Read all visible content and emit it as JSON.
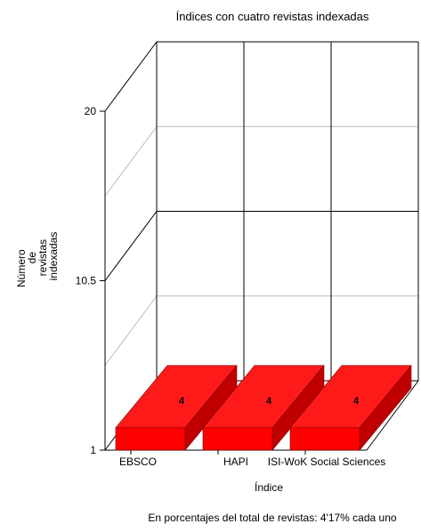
{
  "chart_data": {
    "type": "bar",
    "title": "Índices con cuatro revistas indexadas",
    "xlabel": "Índice",
    "ylabel_lines": [
      "Número",
      "de",
      "revistas",
      "indexadas"
    ],
    "categories": [
      "EBSCO",
      "HAPI",
      "ISI-WoK Social Sciences"
    ],
    "values": [
      4,
      4,
      4
    ],
    "y_ticks": [
      1,
      10.5,
      20
    ],
    "ylim": [
      1,
      20
    ],
    "style": "3d",
    "grid": true,
    "bar_color": "#ff0000",
    "bar_side_color": "#c00000",
    "bar_top_color": "#ff1a1a"
  },
  "footnote": "En porcentajes del total de revistas: 4'17% cada uno"
}
